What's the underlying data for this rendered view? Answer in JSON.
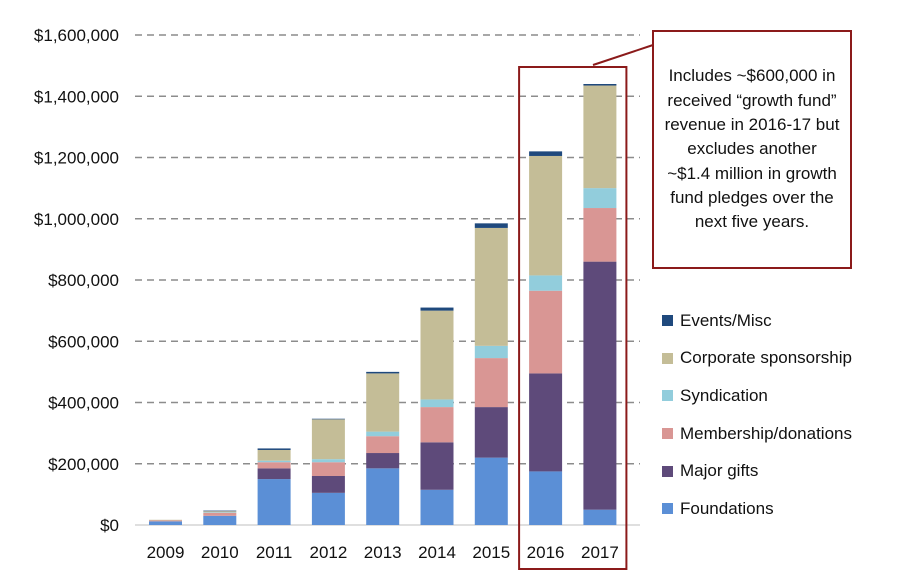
{
  "chart_data": {
    "type": "bar",
    "stacked": true,
    "categories": [
      "2009",
      "2010",
      "2011",
      "2012",
      "2013",
      "2014",
      "2015",
      "2016",
      "2017"
    ],
    "series": [
      {
        "name": "Foundations",
        "color": "#5B8FD6",
        "values": [
          12000,
          30000,
          150000,
          105000,
          185000,
          115000,
          220000,
          175000,
          50000
        ]
      },
      {
        "name": "Major gifts",
        "color": "#5E4A7A",
        "values": [
          0,
          0,
          35000,
          55000,
          50000,
          155000,
          165000,
          320000,
          810000
        ]
      },
      {
        "name": "Membership/donations",
        "color": "#D99694",
        "values": [
          3000,
          10000,
          20000,
          45000,
          55000,
          115000,
          160000,
          270000,
          175000
        ]
      },
      {
        "name": "Syndication",
        "color": "#92CDDC",
        "values": [
          0,
          2000,
          5000,
          10000,
          15000,
          25000,
          40000,
          50000,
          65000
        ]
      },
      {
        "name": "Corporate sponsorship",
        "color": "#C4BD97",
        "values": [
          2000,
          3000,
          35000,
          130000,
          190000,
          290000,
          385000,
          390000,
          335000
        ]
      },
      {
        "name": "Events/Misc",
        "color": "#1F497D",
        "values": [
          0,
          2000,
          5000,
          2000,
          5000,
          10000,
          15000,
          15000,
          5000
        ]
      }
    ],
    "ylim": [
      0,
      1600000
    ],
    "yticks": [
      "$0",
      "$200,000",
      "$400,000",
      "$600,000",
      "$800,000",
      "$1,000,000",
      "$1,200,000",
      "$1,400,000",
      "$1,600,000"
    ],
    "ytick_values": [
      0,
      200000,
      400000,
      600000,
      800000,
      1000000,
      1200000,
      1400000,
      1600000
    ],
    "grid": true,
    "legend_placement": "right",
    "highlight_categories": [
      "2016",
      "2017"
    ],
    "highlight_color": "#8B1A1A",
    "annotation": "Includes ~$600,000 in received “growth fund” revenue in 2016-17 but excludes another ~$1.4 million in growth fund pledges over the next five years."
  }
}
